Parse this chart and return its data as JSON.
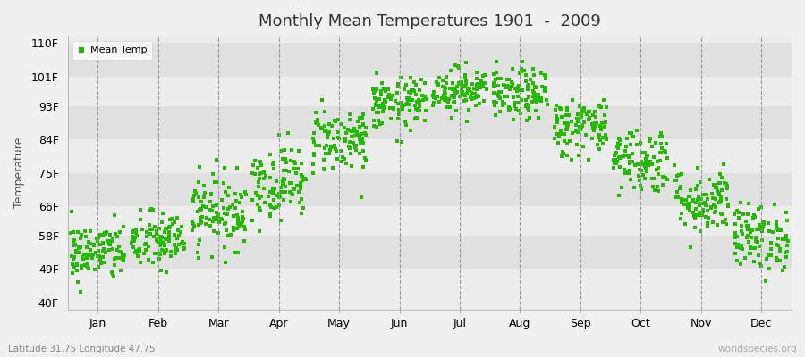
{
  "title": "Monthly Mean Temperatures 1901  -  2009",
  "ylabel": "Temperature",
  "yticks": [
    40,
    49,
    58,
    66,
    75,
    84,
    93,
    101,
    110
  ],
  "ytick_labels": [
    "40F",
    "49F",
    "58F",
    "66F",
    "75F",
    "84F",
    "93F",
    "101F",
    "110F"
  ],
  "ylim": [
    38,
    112
  ],
  "month_labels": [
    "Jan",
    "Feb",
    "Mar",
    "Apr",
    "May",
    "Jun",
    "Jul",
    "Aug",
    "Sep",
    "Oct",
    "Nov",
    "Dec"
  ],
  "dot_color": "#22bb00",
  "bg_color": "#f0f0f0",
  "band_colors": [
    "#ececec",
    "#e0e0e0"
  ],
  "legend_label": "Mean Temp",
  "bottom_left_text": "Latitude 31.75 Longitude 47.75",
  "bottom_right_text": "worldspecies.org",
  "monthly_means": [
    53.5,
    56.5,
    64.5,
    72.5,
    84.0,
    93.5,
    97.5,
    96.0,
    87.5,
    78.5,
    67.5,
    57.5
  ],
  "monthly_stds": [
    4.0,
    4.0,
    5.0,
    5.0,
    4.5,
    3.5,
    3.0,
    3.5,
    4.0,
    4.5,
    4.5,
    4.5
  ],
  "n_years": 109,
  "dot_size": 6,
  "dot_alpha": 1.0
}
